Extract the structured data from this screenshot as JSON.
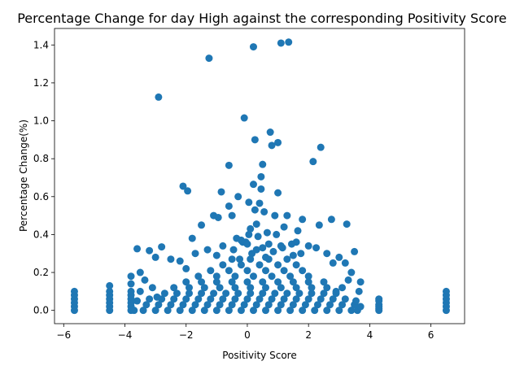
{
  "chart_data": {
    "type": "scatter",
    "title": "Percentage Change for day High against the corresponding Positivity Score",
    "xlabel": "Positivity Score",
    "ylabel": "Percentage Change(%)",
    "xlim": [
      -6.3,
      7.1
    ],
    "ylim": [
      -0.07,
      1.487
    ],
    "xticks": [
      -6,
      -4,
      -2,
      0,
      2,
      4,
      6
    ],
    "yticks": [
      0.0,
      0.2,
      0.4,
      0.6,
      0.8,
      1.0,
      1.2,
      1.4
    ],
    "xtick_labels": [
      "−6",
      "−4",
      "−2",
      "0",
      "2",
      "4",
      "6"
    ],
    "ytick_labels": [
      "0.0",
      "0.2",
      "0.4",
      "0.6",
      "0.8",
      "1.0",
      "1.2",
      "1.4"
    ],
    "grid": false,
    "legend": "none",
    "color": "#1f77b4",
    "series": [
      {
        "x": [
          1.1,
          1.35,
          0.2,
          -1.25,
          -2.9,
          -0.1,
          0.75,
          1.0,
          0.25,
          0.8,
          2.4,
          2.15,
          0.5,
          -0.6,
          0.45,
          0.2,
          -2.1,
          -1.95,
          0.45,
          -0.85,
          1.0,
          -0.3,
          0.05,
          0.4,
          -0.6,
          1.8,
          0.55,
          1.3,
          0.9,
          -0.5,
          0.25,
          2.75,
          2.35,
          0.3,
          -1.1,
          -0.95,
          3.25,
          1.65,
          3.5,
          -3.6,
          -3.2,
          -2.8,
          1.2,
          1.6,
          2.0,
          -1.5,
          0.1,
          0.65,
          -0.35,
          -0.15,
          0.35,
          0.95,
          -1.8,
          -1.3,
          1.45,
          2.25,
          2.6,
          3.0,
          -2.5,
          -2.2,
          -3.0,
          -1.7,
          0.7,
          1.15,
          1.75,
          -0.8,
          0.85,
          -0.05,
          0.5,
          -0.45,
          1.1,
          1.5,
          -1.0,
          -0.2,
          0.3,
          0.6,
          0.15,
          -0.25,
          0.0,
          0.05,
          -3.5,
          -3.35,
          -2.0,
          2.8,
          3.2,
          3.4,
          3.7,
          -5.65,
          -5.65,
          -5.65,
          -5.65,
          -5.65,
          -5.65,
          -4.5,
          -4.5,
          -4.5,
          -4.5,
          -4.5,
          -4.5,
          -4.5,
          -3.8,
          -3.8,
          -3.8,
          -3.8,
          -3.8,
          -3.8,
          -3.8,
          -3.8,
          4.3,
          4.3,
          4.3,
          4.3,
          4.3,
          4.3,
          6.5,
          6.5,
          6.5,
          6.5,
          6.5,
          6.5,
          -3.4,
          -3.0,
          -2.6,
          -2.2,
          -1.8,
          -1.4,
          -1.0,
          -0.6,
          -0.2,
          0.2,
          0.6,
          1.0,
          1.4,
          1.8,
          2.2,
          2.6,
          3.0,
          3.4,
          3.6,
          -3.3,
          -2.9,
          -2.5,
          -2.1,
          -1.7,
          -1.3,
          -0.9,
          -0.5,
          -0.1,
          0.3,
          0.7,
          1.1,
          1.5,
          1.9,
          2.3,
          2.7,
          3.1,
          3.5,
          -3.2,
          -2.8,
          -2.4,
          -2.0,
          -1.6,
          -1.2,
          -0.8,
          -0.4,
          0.0,
          0.4,
          0.8,
          1.2,
          1.6,
          2.0,
          2.4,
          2.8,
          3.2,
          -2.7,
          -2.3,
          -1.9,
          -1.5,
          -1.1,
          -0.7,
          -0.3,
          0.1,
          0.5,
          0.9,
          1.3,
          1.7,
          2.1,
          2.5,
          2.9,
          -2.4,
          -1.9,
          -1.4,
          -0.9,
          -0.4,
          0.1,
          0.6,
          1.1,
          1.6,
          2.1,
          2.6,
          3.1,
          -2.0,
          -1.5,
          -1.0,
          -0.5,
          0.0,
          0.5,
          1.0,
          1.5,
          2.0,
          2.5,
          -1.6,
          -1.0,
          -0.4,
          0.2,
          0.8,
          1.4,
          2.0,
          -1.2,
          -0.6,
          0.0,
          0.6,
          1.2,
          1.8,
          -0.8,
          -0.2,
          0.4,
          1.0,
          1.6,
          -0.5,
          0.1,
          0.7,
          1.3,
          -3.6,
          -3.5,
          3.55,
          3.65,
          3.7,
          -3.7,
          2.9,
          -2.95,
          3.3,
          -3.1
        ],
        "y": [
          1.41,
          1.415,
          1.39,
          1.33,
          1.125,
          1.015,
          0.94,
          0.885,
          0.9,
          0.87,
          0.86,
          0.785,
          0.77,
          0.765,
          0.705,
          0.665,
          0.655,
          0.63,
          0.64,
          0.625,
          0.62,
          0.6,
          0.57,
          0.565,
          0.55,
          0.48,
          0.52,
          0.5,
          0.5,
          0.5,
          0.53,
          0.48,
          0.45,
          0.455,
          0.5,
          0.49,
          0.455,
          0.42,
          0.31,
          0.325,
          0.315,
          0.335,
          0.44,
          0.36,
          0.34,
          0.45,
          0.43,
          0.41,
          0.38,
          0.36,
          0.39,
          0.4,
          0.38,
          0.32,
          0.35,
          0.33,
          0.3,
          0.28,
          0.27,
          0.26,
          0.28,
          0.3,
          0.35,
          0.33,
          0.3,
          0.34,
          0.31,
          0.36,
          0.33,
          0.32,
          0.34,
          0.29,
          0.29,
          0.37,
          0.32,
          0.28,
          0.3,
          0.27,
          0.35,
          0.4,
          0.2,
          0.16,
          0.22,
          0.25,
          0.25,
          0.2,
          0.15,
          0.0,
          0.02,
          0.04,
          0.06,
          0.08,
          0.1,
          0.0,
          0.02,
          0.04,
          0.06,
          0.08,
          0.1,
          0.13,
          0.0,
          0.02,
          0.04,
          0.06,
          0.08,
          0.1,
          0.14,
          0.18,
          0.0,
          0.01,
          0.02,
          0.03,
          0.05,
          0.06,
          0.0,
          0.02,
          0.04,
          0.06,
          0.08,
          0.1,
          0.0,
          0.0,
          0.0,
          0.0,
          0.0,
          0.0,
          0.0,
          0.0,
          0.0,
          0.0,
          0.0,
          0.0,
          0.0,
          0.0,
          0.0,
          0.0,
          0.0,
          0.0,
          0.0,
          0.03,
          0.03,
          0.03,
          0.03,
          0.03,
          0.03,
          0.03,
          0.03,
          0.03,
          0.03,
          0.03,
          0.03,
          0.03,
          0.03,
          0.03,
          0.03,
          0.03,
          0.03,
          0.06,
          0.06,
          0.06,
          0.06,
          0.06,
          0.06,
          0.06,
          0.06,
          0.06,
          0.06,
          0.06,
          0.06,
          0.06,
          0.06,
          0.06,
          0.06,
          0.06,
          0.09,
          0.09,
          0.09,
          0.09,
          0.09,
          0.09,
          0.09,
          0.09,
          0.09,
          0.09,
          0.09,
          0.09,
          0.09,
          0.09,
          0.09,
          0.12,
          0.12,
          0.12,
          0.12,
          0.12,
          0.12,
          0.12,
          0.12,
          0.12,
          0.12,
          0.12,
          0.12,
          0.15,
          0.15,
          0.15,
          0.15,
          0.15,
          0.15,
          0.15,
          0.15,
          0.15,
          0.15,
          0.18,
          0.18,
          0.18,
          0.18,
          0.18,
          0.18,
          0.18,
          0.21,
          0.21,
          0.21,
          0.21,
          0.21,
          0.21,
          0.24,
          0.24,
          0.24,
          0.24,
          0.24,
          0.27,
          0.27,
          0.27,
          0.27,
          0.05,
          0.1,
          0.05,
          0.1,
          0.02,
          0.0,
          0.1,
          0.07,
          0.16,
          0.12
        ]
      }
    ]
  }
}
